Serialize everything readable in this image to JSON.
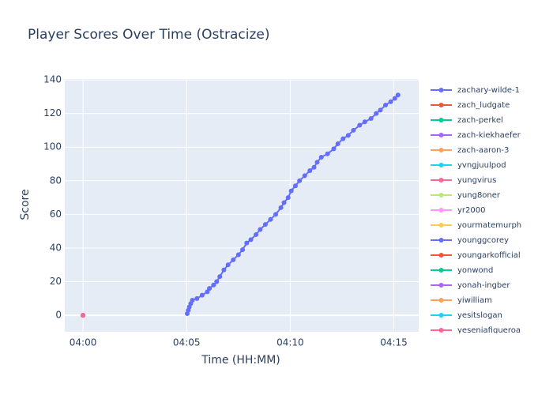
{
  "chart_data": {
    "type": "line",
    "title": "Player Scores Over Time (Ostracize)",
    "x_label": "Time (HH:MM)",
    "y_label": "Score",
    "xlim": [
      239.12,
      256.2
    ],
    "xticks": [
      {
        "value": 240,
        "label": "04:00"
      },
      {
        "value": 245,
        "label": "04:05"
      },
      {
        "value": 250,
        "label": "04:10"
      },
      {
        "value": 255,
        "label": "04:15"
      }
    ],
    "ylim": [
      -9.8,
      140.5
    ],
    "yticks": [
      0,
      20,
      40,
      60,
      80,
      100,
      120,
      140
    ],
    "grid": true,
    "legend": "right",
    "series": [
      {
        "name": "zachary-wilde-1",
        "color": "#636efa",
        "x": [
          245.03,
          245.08,
          245.13,
          245.2,
          245.28,
          245.5,
          245.75,
          246.0,
          246.1,
          246.3,
          246.45,
          246.6,
          246.8,
          247.0,
          247.25,
          247.5,
          247.7,
          247.9,
          248.1,
          248.35,
          248.55,
          248.8,
          249.05,
          249.3,
          249.55,
          249.7,
          249.9,
          250.05,
          250.25,
          250.45,
          250.7,
          250.95,
          251.15,
          251.3,
          251.5,
          251.8,
          252.1,
          252.3,
          252.55,
          252.8,
          253.05,
          253.35,
          253.6,
          253.9,
          254.15,
          254.35,
          254.6,
          254.85,
          255.05,
          255.2
        ],
        "values": [
          1,
          3,
          5,
          7,
          9,
          10,
          12,
          14,
          16,
          18,
          20,
          23,
          27,
          30,
          33,
          36,
          39,
          43,
          45,
          48,
          51,
          54,
          57,
          60,
          64,
          67,
          70,
          74,
          77,
          80,
          83,
          86,
          88,
          91,
          94,
          96,
          99,
          102,
          105,
          107,
          110,
          113,
          115,
          117,
          120,
          122,
          125,
          127,
          129,
          131
        ]
      },
      {
        "name": "zach_ludgate",
        "color": "#EF553B",
        "x": [
          240
        ],
        "values": [
          0
        ]
      },
      {
        "name": "zach-perkel",
        "color": "#00cc96",
        "x": [
          240
        ],
        "values": [
          0
        ]
      },
      {
        "name": "zach-kiekhaefer",
        "color": "#ab63fa",
        "x": [
          240
        ],
        "values": [
          0
        ]
      },
      {
        "name": "zach-aaron-3",
        "color": "#FFA15A",
        "x": [
          240
        ],
        "values": [
          0
        ]
      },
      {
        "name": "yvngjuulpod",
        "color": "#19d3f3",
        "x": [
          240
        ],
        "values": [
          0
        ]
      },
      {
        "name": "yungvirus",
        "color": "#FF6692",
        "x": [
          240
        ],
        "values": [
          0
        ]
      },
      {
        "name": "yung8oner",
        "color": "#B6E880",
        "x": [
          240
        ],
        "values": [
          0
        ]
      },
      {
        "name": "yr2000",
        "color": "#FF97FF",
        "x": [
          240
        ],
        "values": [
          0
        ]
      },
      {
        "name": "yourmatemurph",
        "color": "#FECB52",
        "x": [
          240
        ],
        "values": [
          0
        ]
      },
      {
        "name": "younggcorey",
        "color": "#636efa",
        "x": [
          240
        ],
        "values": [
          0
        ]
      },
      {
        "name": "youngarkofficial",
        "color": "#EF553B",
        "x": [
          240
        ],
        "values": [
          0
        ]
      },
      {
        "name": "yonwond",
        "color": "#00cc96",
        "x": [
          240
        ],
        "values": [
          0
        ]
      },
      {
        "name": "yonah-ingber",
        "color": "#ab63fa",
        "x": [
          240
        ],
        "values": [
          0
        ]
      },
      {
        "name": "yiwilliam",
        "color": "#FFA15A",
        "x": [
          240
        ],
        "values": [
          0
        ]
      },
      {
        "name": "yesitslogan",
        "color": "#19d3f3",
        "x": [
          240
        ],
        "values": [
          0
        ]
      },
      {
        "name": "yeseniafigueroa",
        "color": "#FF6692",
        "x": [
          240
        ],
        "values": [
          0
        ]
      }
    ]
  }
}
